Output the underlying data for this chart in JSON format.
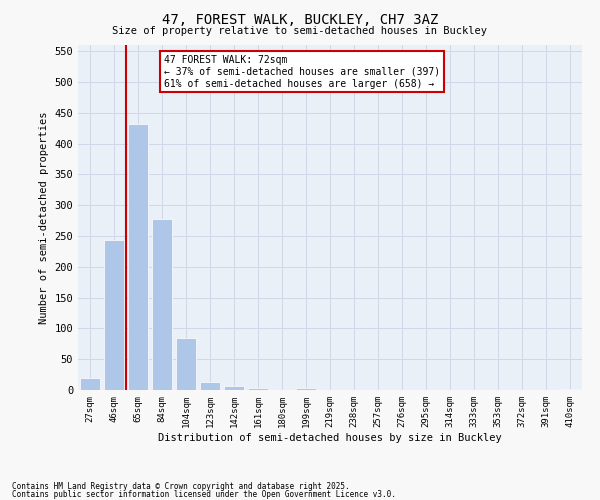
{
  "title_line1": "47, FOREST WALK, BUCKLEY, CH7 3AZ",
  "title_line2": "Size of property relative to semi-detached houses in Buckley",
  "xlabel": "Distribution of semi-detached houses by size in Buckley",
  "ylabel": "Number of semi-detached properties",
  "bar_labels": [
    "27sqm",
    "46sqm",
    "65sqm",
    "84sqm",
    "104sqm",
    "123sqm",
    "142sqm",
    "161sqm",
    "180sqm",
    "199sqm",
    "219sqm",
    "238sqm",
    "257sqm",
    "276sqm",
    "295sqm",
    "314sqm",
    "333sqm",
    "353sqm",
    "372sqm",
    "391sqm",
    "410sqm"
  ],
  "bar_values": [
    20,
    243,
    432,
    277,
    85,
    13,
    7,
    4,
    0,
    4,
    0,
    0,
    0,
    0,
    0,
    0,
    0,
    0,
    0,
    0,
    2
  ],
  "bar_color": "#aec6e8",
  "vline_x": 1.5,
  "vline_color": "#cc0000",
  "annotation_title": "47 FOREST WALK: 72sqm",
  "annotation_line1": "← 37% of semi-detached houses are smaller (397)",
  "annotation_line2": "61% of semi-detached houses are larger (658) →",
  "annotation_box_color": "#cc0000",
  "ylim": [
    0,
    560
  ],
  "yticks": [
    0,
    50,
    100,
    150,
    200,
    250,
    300,
    350,
    400,
    450,
    500,
    550
  ],
  "grid_color": "#d0d8e8",
  "background_color": "#eaf0f8",
  "fig_background_color": "#f8f8f8",
  "footnote1": "Contains HM Land Registry data © Crown copyright and database right 2025.",
  "footnote2": "Contains public sector information licensed under the Open Government Licence v3.0."
}
